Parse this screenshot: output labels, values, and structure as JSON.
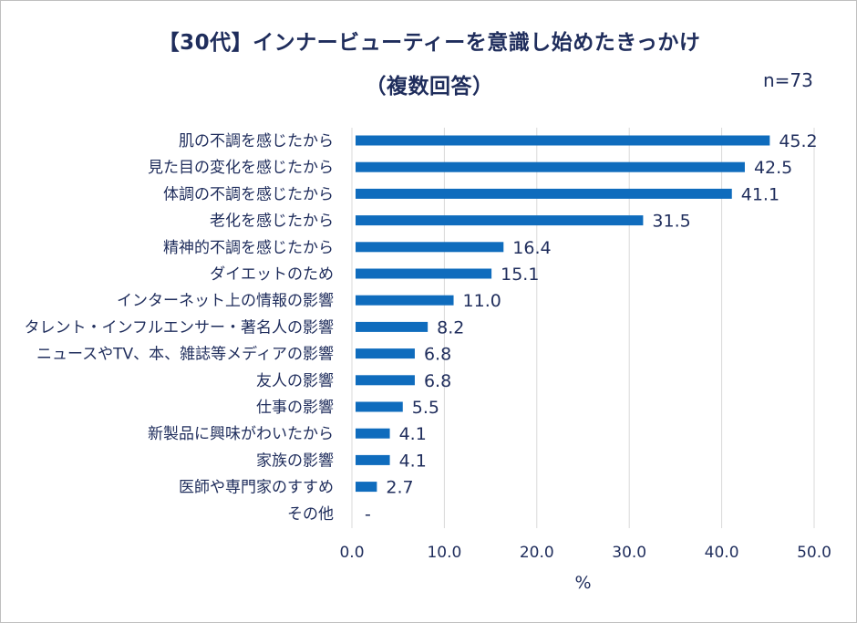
{
  "chart_data": {
    "type": "bar",
    "orientation": "horizontal",
    "title_line1": "【30代】インナービューティーを意識し始めたきっかけ",
    "title_line2": "（複数回答）",
    "n_label": "n=73",
    "xlabel": "%",
    "ylabel": "",
    "xlim": [
      0,
      50
    ],
    "xticks": [
      "0.0",
      "10.0",
      "20.0",
      "30.0",
      "40.0",
      "50.0"
    ],
    "grid": true,
    "bar_color": "#0f6cbd",
    "categories": [
      "肌の不調を感じたから",
      "見た目の変化を感じたから",
      "体調の不調を感じたから",
      "老化を感じたから",
      "精神的不調を感じたから",
      "ダイエットのため",
      "インターネット上の情報の影響",
      "タレント・インフルエンサー・著名人の影響",
      "ニュースやTV、本、雑誌等メディアの影響",
      "友人の影響",
      "仕事の影響",
      "新製品に興味がわいたから",
      "家族の影響",
      "医師や専門家のすすめ",
      "その他"
    ],
    "values": [
      45.2,
      42.5,
      41.1,
      31.5,
      16.4,
      15.1,
      11.0,
      8.2,
      6.8,
      6.8,
      5.5,
      4.1,
      4.1,
      2.7,
      0
    ],
    "value_labels": [
      "45.2",
      "42.5",
      "41.1",
      "31.5",
      "16.4",
      "15.1",
      "11.0",
      "8.2",
      "6.8",
      "6.8",
      "5.5",
      "4.1",
      "4.1",
      "2.7",
      "-"
    ]
  }
}
